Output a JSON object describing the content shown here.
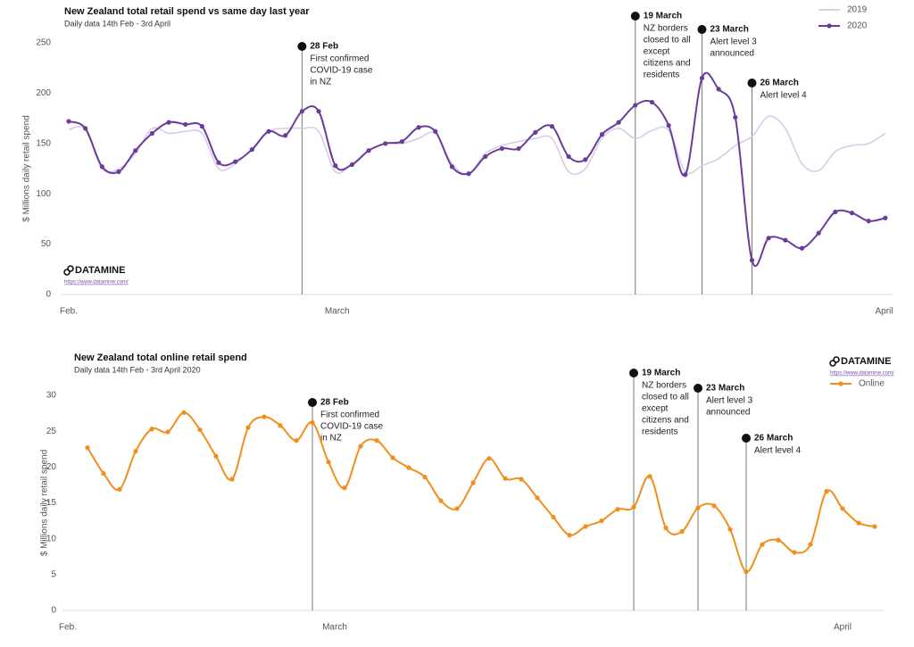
{
  "chart_data": [
    {
      "type": "line",
      "title": "New Zealand total retail spend vs same day last year",
      "subtitle": "Daily data 14th Feb - 3rd April",
      "y_label": "$ Millions daily retail spend",
      "logo": "DATAMINE",
      "url": "https://www.datamine.com/",
      "categories": [
        "Feb.",
        null,
        null,
        null,
        null,
        null,
        null,
        null,
        null,
        null,
        null,
        null,
        null,
        null,
        null,
        null,
        "March",
        null,
        null,
        null,
        null,
        null,
        null,
        null,
        null,
        null,
        null,
        null,
        null,
        null,
        null,
        null,
        null,
        null,
        null,
        null,
        null,
        null,
        null,
        null,
        null,
        null,
        null,
        null,
        null,
        null,
        null,
        "April",
        null,
        null
      ],
      "ylim": [
        0,
        250
      ],
      "yticks": [
        0,
        50,
        100,
        150,
        200,
        250
      ],
      "series": [
        {
          "name": "2019",
          "color": "#dacbe8",
          "markers": false,
          "values": [
            164,
            164,
            125,
            125,
            140,
            165,
            160,
            162,
            160,
            125,
            130,
            145,
            162,
            165,
            165,
            162,
            122,
            130,
            143,
            150,
            150,
            155,
            160,
            130,
            120,
            140,
            148,
            152,
            155,
            155,
            122,
            125,
            155,
            165,
            155,
            163,
            163,
            122,
            128,
            135,
            148,
            157,
            177,
            165,
            130,
            123,
            142,
            148,
            150,
            160
          ]
        },
        {
          "name": "2020",
          "color": "#6a3d9a",
          "markers": true,
          "values": [
            172,
            165,
            127,
            122,
            143,
            160,
            171,
            169,
            167,
            131,
            132,
            144,
            162,
            158,
            182,
            182,
            128,
            129,
            143,
            150,
            152,
            166,
            162,
            127,
            120,
            137,
            145,
            145,
            161,
            167,
            137,
            134,
            159,
            171,
            188,
            191,
            168,
            119,
            215,
            204,
            176,
            34,
            56,
            54,
            46,
            61,
            82,
            81,
            73,
            76
          ]
        }
      ],
      "annotations": [
        {
          "label": "28 Feb",
          "text": [
            "First confirmed",
            "COVID-19 case",
            "in NZ"
          ]
        },
        {
          "label": "19 March",
          "text": [
            "NZ borders",
            "closed to all",
            "except",
            "citizens and",
            "residents"
          ]
        },
        {
          "label": "23 March",
          "text": [
            "Alert level 3",
            "announced"
          ]
        },
        {
          "label": "26 March",
          "text": [
            "Alert level 4"
          ]
        }
      ]
    },
    {
      "type": "line",
      "title": "New Zealand total online retail spend",
      "subtitle": "Daily data 14th Feb - 3rd April 2020",
      "y_label": "$ Millions daily retail spend",
      "logo": "DATAMINE",
      "url": "https://www.datamine.com/",
      "categories": [
        "Feb.",
        null,
        null,
        null,
        null,
        null,
        null,
        null,
        null,
        null,
        null,
        null,
        null,
        null,
        null,
        null,
        "March",
        null,
        null,
        null,
        null,
        null,
        null,
        null,
        null,
        null,
        null,
        null,
        null,
        null,
        null,
        null,
        null,
        null,
        null,
        null,
        null,
        null,
        null,
        null,
        null,
        null,
        null,
        null,
        null,
        null,
        null,
        "April",
        null,
        null
      ],
      "ylim": [
        0,
        30
      ],
      "yticks": [
        0,
        5,
        10,
        15,
        20,
        25,
        30
      ],
      "series": [
        {
          "name": "Online",
          "color": "#f28e1c",
          "markers": true,
          "values": [
            22.7,
            19.1,
            16.9,
            22.2,
            25.3,
            24.9,
            27.6,
            25.2,
            21.5,
            18.3,
            25.5,
            27.0,
            25.8,
            23.7,
            26.2,
            20.7,
            17.1,
            22.9,
            23.7,
            21.3,
            19.9,
            18.6,
            15.3,
            14.2,
            17.8,
            21.2,
            18.4,
            18.3,
            15.7,
            13.0,
            10.5,
            11.7,
            12.5,
            14.1,
            14.4,
            18.7,
            11.5,
            11.0,
            14.3,
            14.6,
            11.3,
            5.4,
            9.2,
            9.8,
            8.1,
            9.2,
            16.6,
            14.2,
            12.2,
            11.7
          ]
        }
      ],
      "annotations": [
        {
          "label": "28 Feb",
          "text": [
            "First confirmed",
            "COVID-19 case",
            "in NZ"
          ]
        },
        {
          "label": "19 March",
          "text": [
            "NZ borders",
            "closed to all",
            "except",
            "citizens and",
            "residents"
          ]
        },
        {
          "label": "23 March",
          "text": [
            "Alert level 3",
            "announced"
          ]
        },
        {
          "label": "26 March",
          "text": [
            "Alert level 4"
          ]
        }
      ]
    }
  ]
}
